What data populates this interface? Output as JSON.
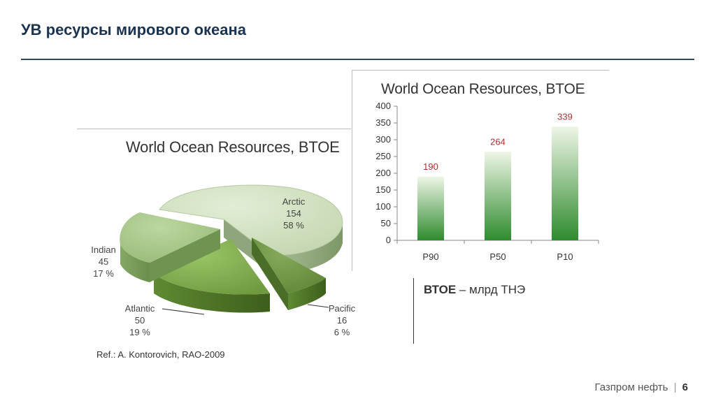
{
  "page": {
    "title": "УВ ресурсы мирового океана",
    "ref": "Ref.: A. Kontorovich, RAO-2009",
    "note_bold": "ВТОЕ",
    "note_rest": " – млрд ТНЭ",
    "footer_company": "Газпром нефть",
    "footer_separator": "|",
    "footer_page": "6"
  },
  "chart_data": [
    {
      "type": "pie",
      "title": "World Ocean Resources, BTOE",
      "slices": [
        {
          "label": "Arctic",
          "value": 154,
          "percent": "58 %",
          "color": "#cfe0bf"
        },
        {
          "label": "Pacific",
          "value": 16,
          "percent": "6 %",
          "color": "#6f9440"
        },
        {
          "label": "Atlantic",
          "value": 50,
          "percent": "19 %",
          "color": "#7faa4e"
        },
        {
          "label": "Indian",
          "value": 45,
          "percent": "17 %",
          "color": "#a9c98a"
        }
      ]
    },
    {
      "type": "bar",
      "title": "World Ocean Resources, BTOE",
      "categories": [
        "P90",
        "P50",
        "P10"
      ],
      "values": [
        190,
        264,
        339
      ],
      "ylim": [
        0,
        400
      ],
      "yticks": [
        0,
        50,
        100,
        150,
        200,
        250,
        300,
        350,
        400
      ],
      "bar_color_top": "#eef5e6",
      "bar_color_bottom": "#2e8b2e",
      "label_color": "#b03030"
    }
  ]
}
